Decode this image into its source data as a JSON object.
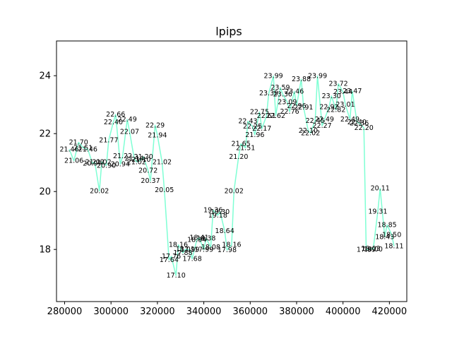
{
  "chart_data": {
    "type": "line",
    "title": "lpips",
    "xlabel": "",
    "ylabel": "",
    "xlim": [
      276500,
      427500
    ],
    "ylim": [
      16.2,
      25.2
    ],
    "xticks": [
      280000,
      300000,
      320000,
      340000,
      360000,
      380000,
      400000,
      420000
    ],
    "xtick_labels": [
      "280000",
      "300000",
      "320000",
      "340000",
      "360000",
      "380000",
      "400000",
      "420000"
    ],
    "yticks": [
      18,
      20,
      22,
      24
    ],
    "ytick_labels": [
      "18",
      "20",
      "22",
      "24"
    ],
    "grid": false,
    "line_color": "#7fffd4",
    "series": [
      {
        "x": [
          282000,
          284000,
          286000,
          288000,
          290000,
          292000,
          293000,
          295000,
          296000,
          298000,
          299000,
          301000,
          302000,
          304000,
          305000,
          307000,
          308000,
          310000,
          311000,
          313000,
          314000,
          316000,
          317000,
          319000,
          320000,
          322000,
          323000,
          325000,
          326000,
          328000,
          329000,
          331000,
          332000,
          334000,
          335000,
          337000,
          338000,
          340000,
          341000,
          343000,
          344000,
          346000,
          347000,
          349000,
          350000,
          352000,
          353000,
          355000,
          356000,
          358000,
          359000,
          361000,
          362000,
          364000,
          365000,
          367000,
          368000,
          370000,
          371000,
          373000,
          374000,
          376000,
          377000,
          379000,
          380000,
          382000,
          383000,
          385000,
          386000,
          388000,
          389000,
          391000,
          392000,
          394000,
          395000,
          397000,
          398000,
          400000,
          401000,
          403000,
          404000,
          406000,
          407000,
          409000,
          410000,
          412000,
          413000,
          415000,
          416000,
          418000,
          419000,
          421000,
          422000
        ],
        "y": [
          21.46,
          21.06,
          21.7,
          21.51,
          21.46,
          20.97,
          21.02,
          20.02,
          21.02,
          20.9,
          21.77,
          22.4,
          22.66,
          20.94,
          21.22,
          22.49,
          22.07,
          21.14,
          21.02,
          21.1,
          21.2,
          20.72,
          20.37,
          22.29,
          21.94,
          21.02,
          20.05,
          17.64,
          17.76,
          17.1,
          18.16,
          17.88,
          18.01,
          17.99,
          17.68,
          18.34,
          18.41,
          17.99,
          18.38,
          18.08,
          19.36,
          19.18,
          19.3,
          18.64,
          17.98,
          18.16,
          20.02,
          21.2,
          21.65,
          21.51,
          22.43,
          22.25,
          21.96,
          22.75,
          22.17,
          22.61,
          23.39,
          23.99,
          22.62,
          23.59,
          23.36,
          23.09,
          22.76,
          23.46,
          22.96,
          23.88,
          22.91,
          22.1,
          22.02,
          22.45,
          23.99,
          22.27,
          22.49,
          22.92,
          23.3,
          22.82,
          23.72,
          23.44,
          23.01,
          22.49,
          23.47,
          22.4,
          22.36,
          22.2,
          17.99,
          18.03,
          18.0,
          19.31,
          20.11,
          18.43,
          18.85,
          18.5,
          18.11
        ],
        "labels": []
      }
    ]
  }
}
